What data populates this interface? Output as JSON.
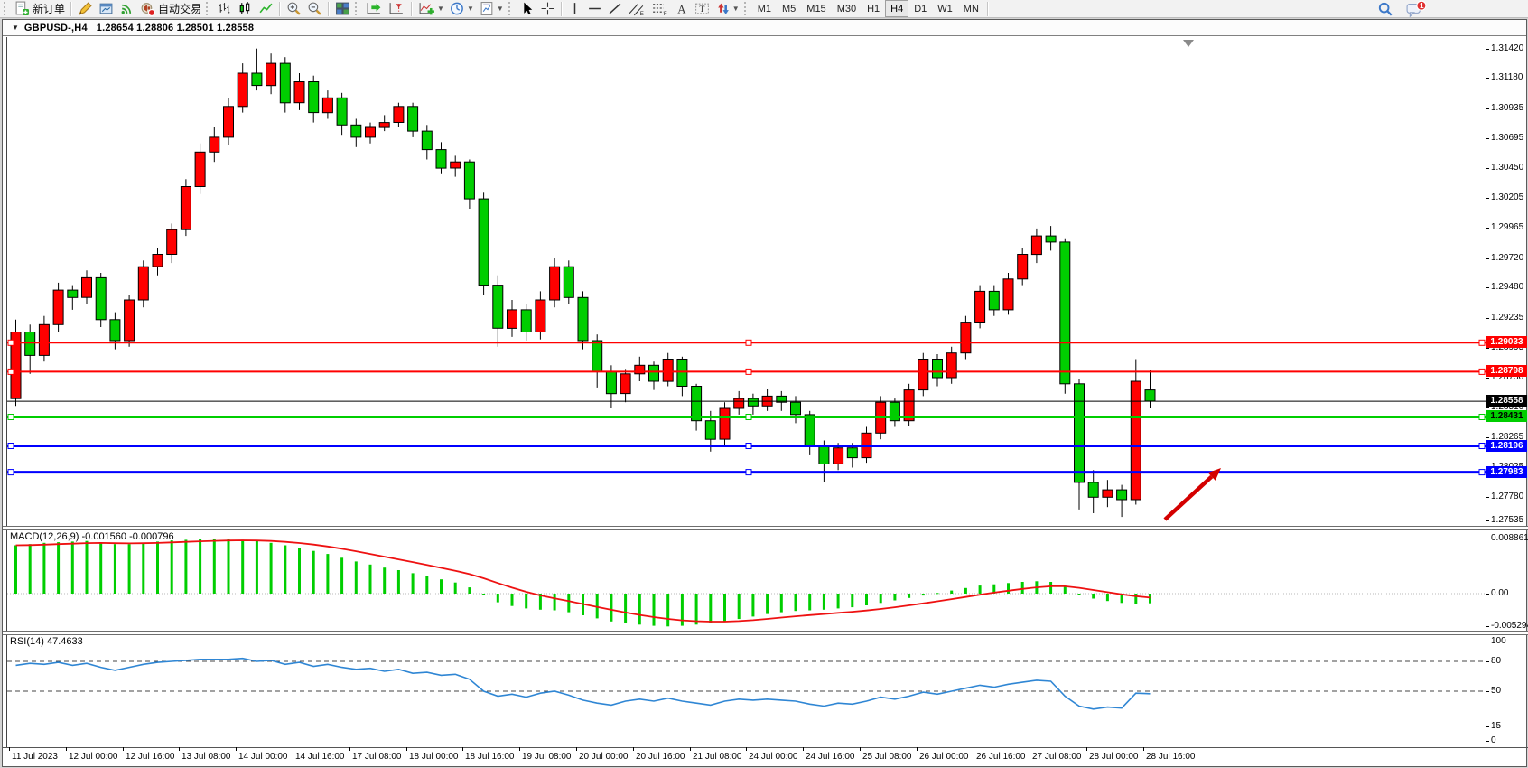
{
  "toolbar": {
    "new_order_label": "新订单",
    "autotrading_label": "自动交易",
    "timeframes": [
      "M1",
      "M5",
      "M15",
      "M30",
      "H1",
      "H4",
      "D1",
      "W1",
      "MN"
    ],
    "active_timeframe": "H4",
    "notification_badge": "1",
    "icons": [
      "new-order",
      "metaeditor",
      "new-chart",
      "signals",
      "autotrading",
      "bar-chart",
      "candlestick-chart",
      "line-chart",
      "zoom-in",
      "zoom-out",
      "tile-windows",
      "auto-scroll",
      "chart-shift",
      "indicators",
      "periods",
      "templates",
      "cursor",
      "crosshair",
      "vertical-line",
      "horizontal-line",
      "trendline",
      "equidistant-channel",
      "fibonacci",
      "text",
      "text-label",
      "arrows",
      "search",
      "chat"
    ]
  },
  "window": {
    "title_symbol": "GBPUSD-,H4",
    "title_quotes": "1.28654 1.28806 1.28501 1.28558"
  },
  "price_axis": {
    "ticks": [
      "1.31420",
      "1.31180",
      "1.30935",
      "1.30695",
      "1.30450",
      "1.30205",
      "1.29965",
      "1.29720",
      "1.29480",
      "1.29235",
      "1.28995",
      "1.28750",
      "1.28510",
      "1.28265",
      "1.28025",
      "1.27780",
      "1.27535"
    ]
  },
  "hlines": [
    {
      "label": "1.29033",
      "value": 1.29033,
      "color": "#ff0000",
      "width": 2,
      "text_color": "#ffffff"
    },
    {
      "label": "1.28798",
      "value": 1.28798,
      "color": "#ff0000",
      "width": 2,
      "text_color": "#ffffff"
    },
    {
      "label": "1.28431",
      "value": 1.28431,
      "color": "#00ce00",
      "width": 3,
      "text_color": "#000000"
    },
    {
      "label": "1.28196",
      "value": 1.28196,
      "color": "#0000ff",
      "width": 3,
      "text_color": "#ffffff"
    },
    {
      "label": "1.27983",
      "value": 1.27983,
      "color": "#0000ff",
      "width": 3,
      "text_color": "#ffffff"
    }
  ],
  "current_price": {
    "label": "1.28558",
    "value": 1.28558,
    "badge_bg": "#000000",
    "badge_fg": "#ffffff"
  },
  "macd_panel": {
    "label": "MACD(12,26,9)",
    "values": "-0.001560 -0.000796",
    "axis_labels": [
      {
        "text": "0.008861",
        "value": 0.008861
      },
      {
        "text": "0.00",
        "value": 0
      },
      {
        "text": "-0.005294",
        "value": -0.005294
      }
    ]
  },
  "rsi_panel": {
    "label": "RSI(14)",
    "value": "47.4633",
    "levels": [
      {
        "text": "100",
        "value": 100,
        "dashed": false
      },
      {
        "text": "80",
        "value": 80,
        "dashed": true
      },
      {
        "text": "50",
        "value": 50,
        "dashed": true
      },
      {
        "text": "15",
        "value": 15,
        "dashed": true
      },
      {
        "text": "0",
        "value": 0,
        "dashed": false
      }
    ]
  },
  "time_axis": [
    "11 Jul 2023",
    "12 Jul 00:00",
    "12 Jul 16:00",
    "13 Jul 08:00",
    "14 Jul 00:00",
    "14 Jul 16:00",
    "17 Jul 08:00",
    "18 Jul 00:00",
    "18 Jul 16:00",
    "19 Jul 08:00",
    "20 Jul 00:00",
    "20 Jul 16:00",
    "21 Jul 08:00",
    "24 Jul 00:00",
    "24 Jul 16:00",
    "25 Jul 08:00",
    "26 Jul 00:00",
    "26 Jul 16:00",
    "27 Jul 08:00",
    "28 Jul 00:00",
    "28 Jul 16:00"
  ],
  "annotation_arrow": {
    "color": "#d40000",
    "from": [
      1290,
      575
    ],
    "to": [
      1352,
      518
    ]
  },
  "chart_data": {
    "type": "candlestick",
    "title": "GBPUSD-,H4",
    "symbol": "GBPUSD-",
    "period": "H4",
    "up_color": "#ff0000",
    "down_color": "#00ce00",
    "wick_color": "#000000",
    "ylim": [
      1.27535,
      1.3142
    ],
    "ohlc": [
      [
        1.2858,
        1.2922,
        1.2852,
        1.2912
      ],
      [
        1.2912,
        1.2918,
        1.2878,
        1.2893
      ],
      [
        1.2893,
        1.2925,
        1.2888,
        1.2918
      ],
      [
        1.2918,
        1.2952,
        1.2912,
        1.2946
      ],
      [
        1.2946,
        1.295,
        1.293,
        1.294
      ],
      [
        1.294,
        1.2962,
        1.2935,
        1.2956
      ],
      [
        1.2956,
        1.296,
        1.2916,
        1.2922
      ],
      [
        1.2922,
        1.2928,
        1.2898,
        1.2905
      ],
      [
        1.2905,
        1.2942,
        1.29,
        1.2938
      ],
      [
        1.2938,
        1.297,
        1.2932,
        1.2965
      ],
      [
        1.2965,
        1.298,
        1.2958,
        1.2975
      ],
      [
        1.2975,
        1.3,
        1.2968,
        1.2995
      ],
      [
        1.2995,
        1.3036,
        1.299,
        1.303
      ],
      [
        1.303,
        1.3065,
        1.3024,
        1.3058
      ],
      [
        1.3058,
        1.3078,
        1.305,
        1.307
      ],
      [
        1.307,
        1.3102,
        1.3064,
        1.3095
      ],
      [
        1.3095,
        1.313,
        1.309,
        1.3122
      ],
      [
        1.3122,
        1.3142,
        1.3108,
        1.3112
      ],
      [
        1.3112,
        1.3138,
        1.3105,
        1.313
      ],
      [
        1.313,
        1.3135,
        1.309,
        1.3098
      ],
      [
        1.3098,
        1.3122,
        1.3092,
        1.3115
      ],
      [
        1.3115,
        1.312,
        1.3082,
        1.309
      ],
      [
        1.309,
        1.3108,
        1.3085,
        1.3102
      ],
      [
        1.3102,
        1.3106,
        1.3072,
        1.308
      ],
      [
        1.308,
        1.3085,
        1.3062,
        1.307
      ],
      [
        1.307,
        1.3082,
        1.3065,
        1.3078
      ],
      [
        1.3078,
        1.3088,
        1.3075,
        1.3082
      ],
      [
        1.3082,
        1.3098,
        1.3078,
        1.3095
      ],
      [
        1.3095,
        1.3098,
        1.307,
        1.3075
      ],
      [
        1.3075,
        1.308,
        1.3052,
        1.306
      ],
      [
        1.306,
        1.3066,
        1.304,
        1.3045
      ],
      [
        1.3045,
        1.3055,
        1.3038,
        1.305
      ],
      [
        1.305,
        1.3052,
        1.3012,
        1.302
      ],
      [
        1.302,
        1.3025,
        1.2942,
        1.295
      ],
      [
        1.295,
        1.2958,
        1.29,
        1.2915
      ],
      [
        1.2915,
        1.2938,
        1.2908,
        1.293
      ],
      [
        1.293,
        1.2935,
        1.2905,
        1.2912
      ],
      [
        1.2912,
        1.2945,
        1.2906,
        1.2938
      ],
      [
        1.2938,
        1.2972,
        1.2932,
        1.2965
      ],
      [
        1.2965,
        1.297,
        1.2935,
        1.294
      ],
      [
        1.294,
        1.2945,
        1.2898,
        1.2905
      ],
      [
        1.2905,
        1.291,
        1.2867,
        1.288
      ],
      [
        1.288,
        1.2885,
        1.285,
        1.2862
      ],
      [
        1.2862,
        1.2882,
        1.2855,
        1.2878
      ],
      [
        1.2878,
        1.2892,
        1.2872,
        1.2885
      ],
      [
        1.2885,
        1.2888,
        1.2865,
        1.2872
      ],
      [
        1.2872,
        1.2895,
        1.2868,
        1.289
      ],
      [
        1.289,
        1.2892,
        1.286,
        1.2868
      ],
      [
        1.2868,
        1.287,
        1.2832,
        1.284
      ],
      [
        1.284,
        1.2848,
        1.2815,
        1.2825
      ],
      [
        1.2825,
        1.2855,
        1.282,
        1.285
      ],
      [
        1.285,
        1.2864,
        1.2845,
        1.2858
      ],
      [
        1.2858,
        1.2862,
        1.2845,
        1.2852
      ],
      [
        1.2852,
        1.2866,
        1.2848,
        1.286
      ],
      [
        1.286,
        1.2864,
        1.2848,
        1.2855
      ],
      [
        1.2855,
        1.286,
        1.2838,
        1.2845
      ],
      [
        1.2845,
        1.2848,
        1.2812,
        1.282
      ],
      [
        1.282,
        1.2824,
        1.279,
        1.2805
      ],
      [
        1.2805,
        1.2822,
        1.28,
        1.2818
      ],
      [
        1.2818,
        1.2822,
        1.2802,
        1.281
      ],
      [
        1.281,
        1.2835,
        1.2806,
        1.283
      ],
      [
        1.283,
        1.286,
        1.2825,
        1.2855
      ],
      [
        1.2855,
        1.2858,
        1.2835,
        1.284
      ],
      [
        1.284,
        1.287,
        1.2836,
        1.2865
      ],
      [
        1.2865,
        1.2895,
        1.286,
        1.289
      ],
      [
        1.289,
        1.2894,
        1.2868,
        1.2875
      ],
      [
        1.2875,
        1.29,
        1.287,
        1.2895
      ],
      [
        1.2895,
        1.2925,
        1.289,
        1.292
      ],
      [
        1.292,
        1.295,
        1.2915,
        1.2945
      ],
      [
        1.2945,
        1.295,
        1.2925,
        1.293
      ],
      [
        1.293,
        1.296,
        1.2926,
        1.2955
      ],
      [
        1.2955,
        1.298,
        1.295,
        1.2975
      ],
      [
        1.2975,
        1.2996,
        1.2968,
        1.299
      ],
      [
        1.299,
        1.2998,
        1.2978,
        1.2985
      ],
      [
        1.2985,
        1.2988,
        1.2862,
        1.287
      ],
      [
        1.287,
        1.2874,
        1.2768,
        1.279
      ],
      [
        1.279,
        1.28,
        1.2765,
        1.2778
      ],
      [
        1.2778,
        1.2792,
        1.277,
        1.2784
      ],
      [
        1.2784,
        1.2788,
        1.2762,
        1.2776
      ],
      [
        1.2776,
        1.289,
        1.2772,
        1.2872
      ],
      [
        1.2865,
        1.2881,
        1.285,
        1.2856
      ]
    ],
    "indicators": {
      "macd": {
        "params": [
          12,
          26,
          9
        ],
        "final_macd": -0.00156,
        "final_signal": -0.000796,
        "range": [
          -0.005294,
          0.008861
        ],
        "histogram": [
          0.0078,
          0.008,
          0.0082,
          0.0083,
          0.0084,
          0.0085,
          0.0083,
          0.008,
          0.008,
          0.0082,
          0.0084,
          0.0086,
          0.0087,
          0.0088,
          0.00886,
          0.0088,
          0.0087,
          0.0085,
          0.0082,
          0.0078,
          0.0074,
          0.0069,
          0.0064,
          0.0058,
          0.0052,
          0.0047,
          0.0042,
          0.0038,
          0.0033,
          0.0028,
          0.0023,
          0.0018,
          0.001,
          -0.0002,
          -0.0014,
          -0.002,
          -0.0024,
          -0.0026,
          -0.0027,
          -0.003,
          -0.0035,
          -0.004,
          -0.0045,
          -0.0048,
          -0.005,
          -0.0052,
          -0.0053,
          -0.0052,
          -0.005,
          -0.0048,
          -0.0045,
          -0.0041,
          -0.0037,
          -0.0033,
          -0.003,
          -0.0028,
          -0.0027,
          -0.0026,
          -0.0024,
          -0.0022,
          -0.0019,
          -0.0015,
          -0.0011,
          -0.0007,
          -0.0003,
          0.0001,
          0.0005,
          0.0009,
          0.0013,
          0.0015,
          0.0017,
          0.0019,
          0.002,
          0.0019,
          0.0012,
          -0.0001,
          -0.0008,
          -0.0012,
          -0.0015,
          -0.0016,
          -0.00156
        ]
      },
      "rsi": {
        "period": 14,
        "final": 47.4633,
        "values": [
          76,
          78,
          77,
          79,
          76,
          78,
          74,
          71,
          74,
          77,
          79,
          80,
          81,
          82,
          82,
          82,
          83,
          80,
          81,
          77,
          79,
          75,
          77,
          74,
          72,
          73,
          70,
          72,
          68,
          69,
          66,
          67,
          62,
          50,
          45,
          47,
          44,
          48,
          50,
          46,
          41,
          38,
          36,
          40,
          42,
          40,
          43,
          40,
          38,
          36,
          40,
          42,
          41,
          42,
          41,
          40,
          37,
          35,
          38,
          37,
          40,
          44,
          42,
          45,
          49,
          47,
          50,
          53,
          56,
          54,
          57,
          59,
          61,
          60,
          45,
          35,
          32,
          34,
          33,
          48,
          47.46
        ]
      }
    }
  }
}
